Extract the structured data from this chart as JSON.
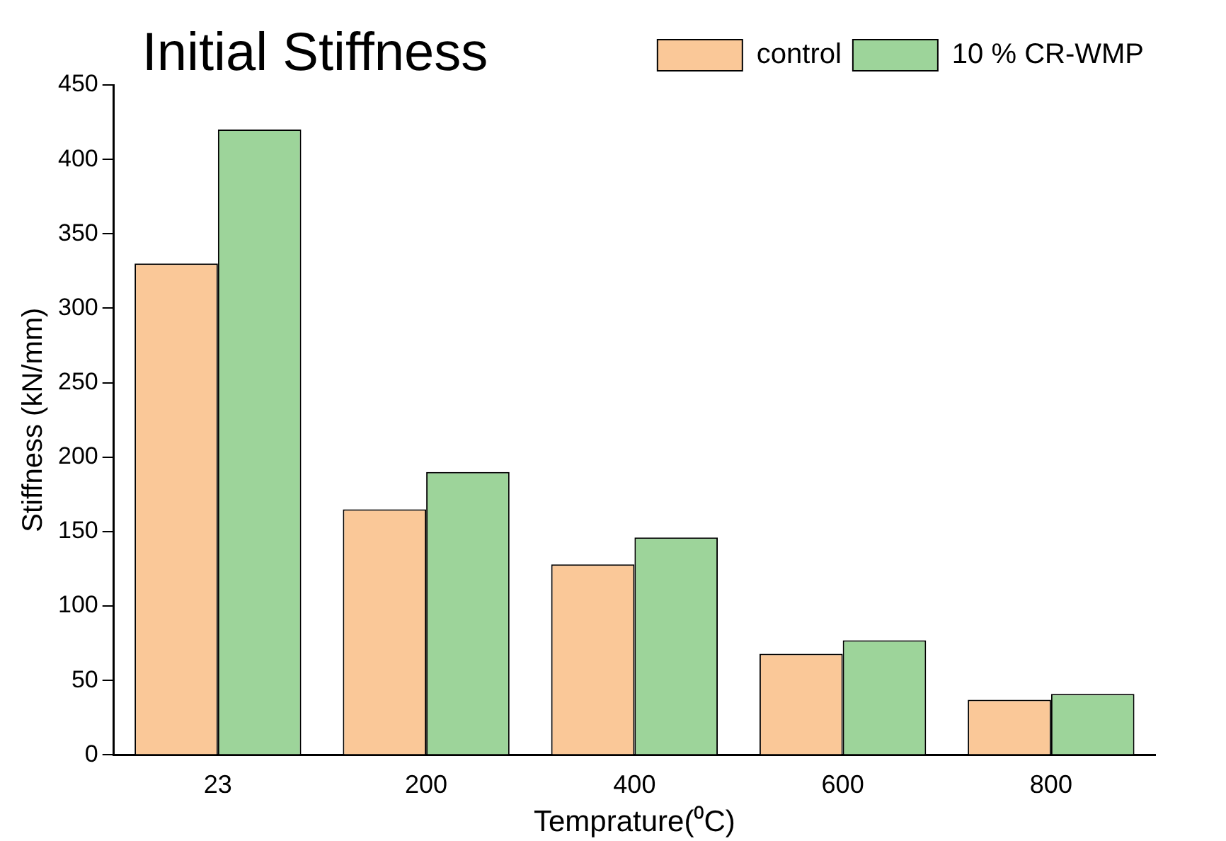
{
  "chart_data": {
    "type": "bar",
    "title": "Initial Stiffness",
    "xlabel": "Temprature(⁰C)",
    "ylabel": "Stiffness (kN/mm)",
    "categories": [
      "23",
      "200",
      "400",
      "600",
      "800"
    ],
    "series": [
      {
        "name": "control",
        "color": "#fac898",
        "values": [
          330,
          165,
          128,
          68,
          37
        ]
      },
      {
        "name": "10 % CR-WMP",
        "color": "#9dd49a",
        "values": [
          420,
          190,
          146,
          77,
          41
        ]
      }
    ],
    "ylim": [
      0,
      450
    ],
    "yticks": [
      0,
      50,
      100,
      150,
      200,
      250,
      300,
      350,
      400,
      450
    ],
    "grid": false,
    "legend": "top right"
  }
}
